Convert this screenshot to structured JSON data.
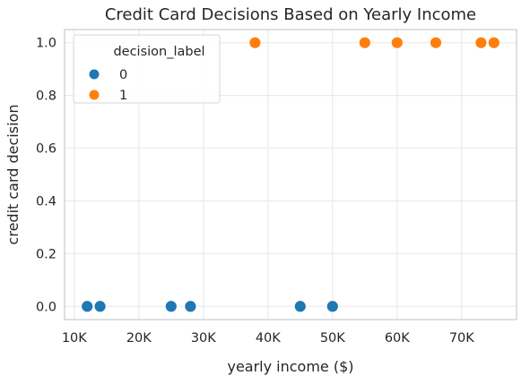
{
  "chart_data": {
    "type": "scatter",
    "title": "Credit Card Decisions Based on Yearly Income",
    "xlabel": "yearly income ($)",
    "ylabel": "credit card decision",
    "xlim": [
      8500,
      78500
    ],
    "ylim": [
      -0.05,
      1.05
    ],
    "x_ticks": [
      {
        "value": 10000,
        "label": "10K"
      },
      {
        "value": 20000,
        "label": "20K"
      },
      {
        "value": 30000,
        "label": "30K"
      },
      {
        "value": 40000,
        "label": "40K"
      },
      {
        "value": 50000,
        "label": "50K"
      },
      {
        "value": 60000,
        "label": "60K"
      },
      {
        "value": 70000,
        "label": "70K"
      }
    ],
    "y_ticks": [
      {
        "value": 0.0,
        "label": "0.0"
      },
      {
        "value": 0.2,
        "label": "0.2"
      },
      {
        "value": 0.4,
        "label": "0.4"
      },
      {
        "value": 0.6,
        "label": "0.6"
      },
      {
        "value": 0.8,
        "label": "0.8"
      },
      {
        "value": 1.0,
        "label": "1.0"
      }
    ],
    "grid": true,
    "legend": {
      "title": "decision_label",
      "placement": "top-left"
    },
    "series": [
      {
        "name": "0",
        "color": "#1f77b4",
        "points": [
          {
            "x": 12000,
            "y": 0
          },
          {
            "x": 14000,
            "y": 0
          },
          {
            "x": 25000,
            "y": 0
          },
          {
            "x": 28000,
            "y": 0
          },
          {
            "x": 45000,
            "y": 0
          },
          {
            "x": 50000,
            "y": 0
          }
        ]
      },
      {
        "name": "1",
        "color": "#ff7f0e",
        "points": [
          {
            "x": 38000,
            "y": 1
          },
          {
            "x": 55000,
            "y": 1
          },
          {
            "x": 60000,
            "y": 1
          },
          {
            "x": 66000,
            "y": 1
          },
          {
            "x": 73000,
            "y": 1
          },
          {
            "x": 75000,
            "y": 1
          }
        ]
      }
    ]
  }
}
